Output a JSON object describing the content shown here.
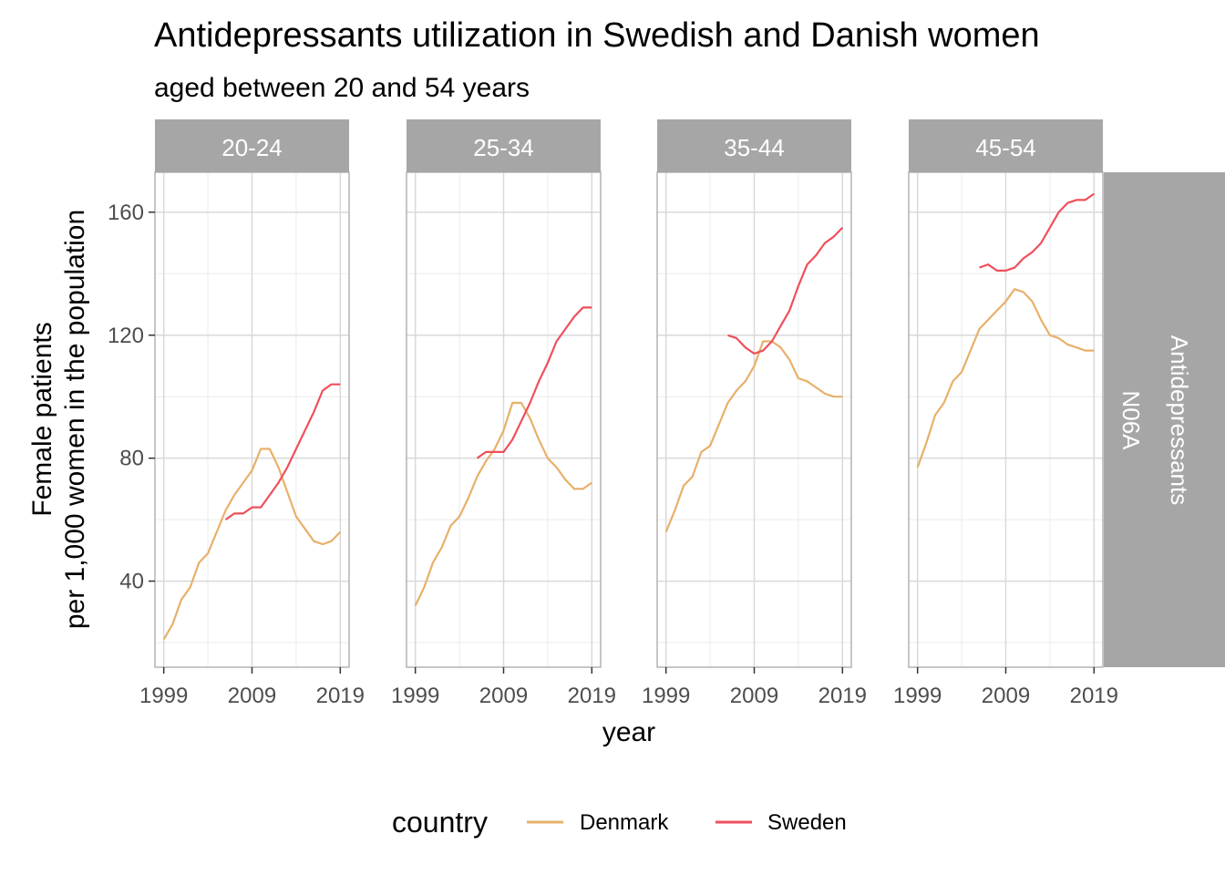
{
  "chart_data": {
    "type": "line",
    "title": "Antidepressants utilization in Swedish and Danish women",
    "subtitle": "aged between 20 and 54 years",
    "xlabel": "year",
    "ylabel_line1": "Female patients",
    "ylabel_line2": "per 1,000 women in the population",
    "xlim": [
      1998,
      2020
    ],
    "ylim": [
      12,
      173
    ],
    "x_ticks": [
      1999,
      2009,
      2019
    ],
    "y_ticks": [
      40,
      80,
      120,
      160
    ],
    "row_strip_lines": [
      "Antidepressants",
      "N06A"
    ],
    "grid": true,
    "legend_position": "bottom",
    "legend": {
      "title": "country",
      "entries": [
        {
          "name": "Denmark",
          "color": "#E8B06A"
        },
        {
          "name": "Sweden",
          "color": "#EF4F5B"
        }
      ]
    },
    "panels": [
      {
        "label": "20-24",
        "series": [
          {
            "name": "Denmark",
            "x": [
              1999,
              2000,
              2001,
              2002,
              2003,
              2004,
              2005,
              2006,
              2007,
              2008,
              2009,
              2010,
              2011,
              2012,
              2013,
              2014,
              2015,
              2016,
              2017,
              2018,
              2019
            ],
            "y": [
              21,
              26,
              34,
              38,
              46,
              49,
              56,
              63,
              68,
              72,
              76,
              83,
              83,
              77,
              69,
              61,
              57,
              53,
              52,
              53,
              56
            ]
          },
          {
            "name": "Sweden",
            "x": [
              2006,
              2007,
              2008,
              2009,
              2010,
              2011,
              2012,
              2013,
              2014,
              2015,
              2016,
              2017,
              2018,
              2019
            ],
            "y": [
              60,
              62,
              62,
              64,
              64,
              68,
              72,
              77,
              83,
              89,
              95,
              102,
              104,
              104
            ]
          }
        ]
      },
      {
        "label": "25-34",
        "series": [
          {
            "name": "Denmark",
            "x": [
              1999,
              2000,
              2001,
              2002,
              2003,
              2004,
              2005,
              2006,
              2007,
              2008,
              2009,
              2010,
              2011,
              2012,
              2013,
              2014,
              2015,
              2016,
              2017,
              2018,
              2019
            ],
            "y": [
              32,
              38,
              46,
              51,
              58,
              61,
              67,
              74,
              79,
              83,
              89,
              98,
              98,
              93,
              86,
              80,
              77,
              73,
              70,
              70,
              72
            ]
          },
          {
            "name": "Sweden",
            "x": [
              2006,
              2007,
              2008,
              2009,
              2010,
              2011,
              2012,
              2013,
              2014,
              2015,
              2016,
              2017,
              2018,
              2019
            ],
            "y": [
              80,
              82,
              82,
              82,
              86,
              92,
              98,
              105,
              111,
              118,
              122,
              126,
              129,
              129
            ]
          }
        ]
      },
      {
        "label": "35-44",
        "series": [
          {
            "name": "Denmark",
            "x": [
              1999,
              2000,
              2001,
              2002,
              2003,
              2004,
              2005,
              2006,
              2007,
              2008,
              2009,
              2010,
              2011,
              2012,
              2013,
              2014,
              2015,
              2016,
              2017,
              2018,
              2019
            ],
            "y": [
              56,
              63,
              71,
              74,
              82,
              84,
              91,
              98,
              102,
              105,
              110,
              118,
              118,
              116,
              112,
              106,
              105,
              103,
              101,
              100,
              100
            ]
          },
          {
            "name": "Sweden",
            "x": [
              2006,
              2007,
              2008,
              2009,
              2010,
              2011,
              2012,
              2013,
              2014,
              2015,
              2016,
              2017,
              2018,
              2019
            ],
            "y": [
              120,
              119,
              116,
              114,
              115,
              118,
              123,
              128,
              136,
              143,
              146,
              150,
              152,
              155
            ]
          }
        ]
      },
      {
        "label": "45-54",
        "series": [
          {
            "name": "Denmark",
            "x": [
              1999,
              2000,
              2001,
              2002,
              2003,
              2004,
              2005,
              2006,
              2007,
              2008,
              2009,
              2010,
              2011,
              2012,
              2013,
              2014,
              2015,
              2016,
              2017,
              2018,
              2019
            ],
            "y": [
              77,
              85,
              94,
              98,
              105,
              108,
              115,
              122,
              125,
              128,
              131,
              135,
              134,
              131,
              125,
              120,
              119,
              117,
              116,
              115,
              115
            ]
          },
          {
            "name": "Sweden",
            "x": [
              2006,
              2007,
              2008,
              2009,
              2010,
              2011,
              2012,
              2013,
              2014,
              2015,
              2016,
              2017,
              2018,
              2019
            ],
            "y": [
              142,
              143,
              141,
              141,
              142,
              145,
              147,
              150,
              155,
              160,
              163,
              164,
              164,
              166
            ]
          }
        ]
      }
    ]
  }
}
